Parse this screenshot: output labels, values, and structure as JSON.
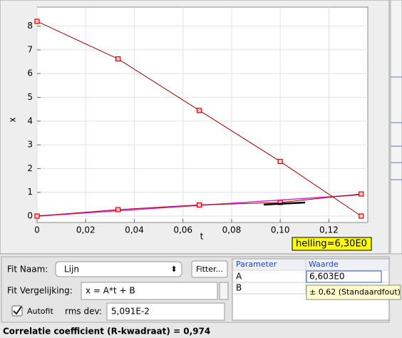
{
  "chart_data": {
    "type": "line",
    "xlabel": "t",
    "ylabel": "x",
    "x": [
      0,
      0.0333,
      0.0667,
      0.1,
      0.1333
    ],
    "series": [
      {
        "color": "#a00000",
        "values": [
          8.2,
          6.62,
          4.45,
          2.3,
          0
        ]
      },
      {
        "color": "#a00000",
        "values": [
          0,
          0.27,
          0.47,
          0.57,
          0.93
        ]
      }
    ],
    "fit": {
      "color": "#e020e0",
      "x": [
        0,
        0.1333
      ],
      "values": [
        0,
        0.9
      ]
    },
    "xlim": [
      0,
      0.136
    ],
    "ylim": [
      -0.27,
      8.8
    ],
    "xticks": [
      0,
      {
        "value": 0.02,
        "label": "0,02"
      },
      {
        "value": 0.04,
        "label": "0,04"
      },
      {
        "value": 0.06,
        "label": "0,06"
      },
      {
        "value": 0.08,
        "label": "0,08"
      },
      {
        "value": 0.1,
        "label": "0,10"
      },
      {
        "value": 0.12,
        "label": "0,12"
      }
    ],
    "yticks": [
      0,
      1,
      2,
      3,
      4,
      5,
      6,
      7,
      8
    ],
    "grid": true,
    "annotation": "helling=6,30E0"
  },
  "fit_panel": {
    "name_label": "Fit Naam:",
    "name_value": "Lijn",
    "fitter_button": "Fitter...",
    "equation_label": "Fit Vergelijking:",
    "equation_value": "x = A*t + B",
    "autofit_label": "Autofit",
    "rms_label": "rms dev:",
    "rms_value": "5,091E-2",
    "table": {
      "headers": [
        "Parameter",
        "Waarde"
      ],
      "rows": [
        [
          "A",
          "6,603E0"
        ],
        [
          "B"
        ]
      ]
    },
    "tooltip": "± 0,62 (Standaardfout)"
  },
  "status": "Correlatie coefficient (R-kwadraat) = 0,974"
}
